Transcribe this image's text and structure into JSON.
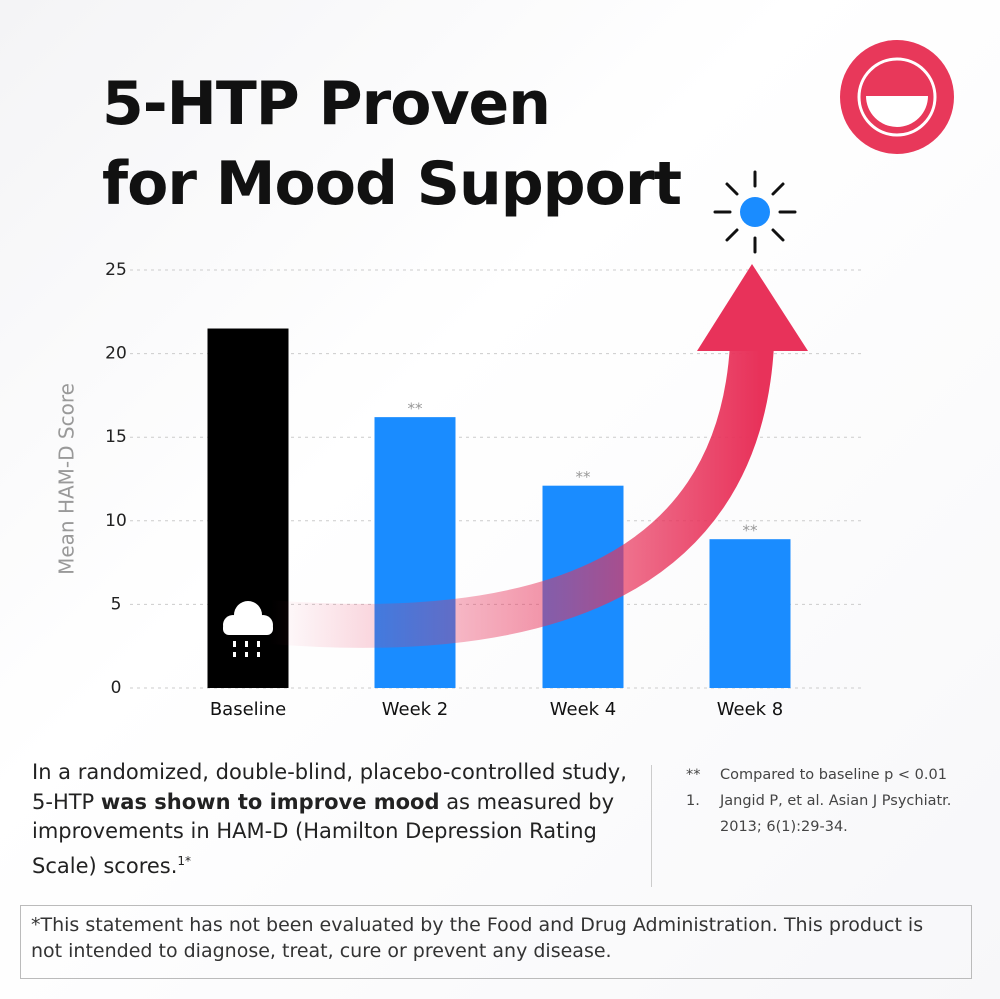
{
  "title": [
    "5-HTP Proven",
    "for Mood Support"
  ],
  "chart_data": {
    "type": "bar",
    "y_label": "Mean HAM-D Score",
    "categories": [
      "Baseline",
      "Week 2",
      "Week 4",
      "Week 8"
    ],
    "values": [
      21.5,
      16.2,
      12.1,
      8.9
    ],
    "colors": [
      "#000000",
      "#1a8cff",
      "#1a8cff",
      "#1a8cff"
    ],
    "bar_annotations": [
      null,
      "**",
      "**",
      "**"
    ],
    "ylim": [
      0,
      25
    ],
    "yticks": [
      0,
      5,
      10,
      15,
      20,
      25
    ],
    "grid": true
  },
  "body": {
    "before": "In a randomized, double-blind, placebo-controlled study, 5-HTP ",
    "bold": "was shown to improve mood",
    "after": " as measured by improvements in HAM-D (Hamilton Depression Rating Scale) scores.",
    "sup": "1*"
  },
  "footnotes": [
    {
      "marker": "**",
      "text": "Compared to baseline p < 0.01"
    },
    {
      "marker": "1.",
      "text": "Jangid P, et al. Asian J Psychiatr. 2013; 6(1):29-34."
    }
  ],
  "disclaimer": "*This statement has not been evaluated by the Food and Drug Administration. This product is not intended to diagnose, treat, cure or prevent any disease."
}
